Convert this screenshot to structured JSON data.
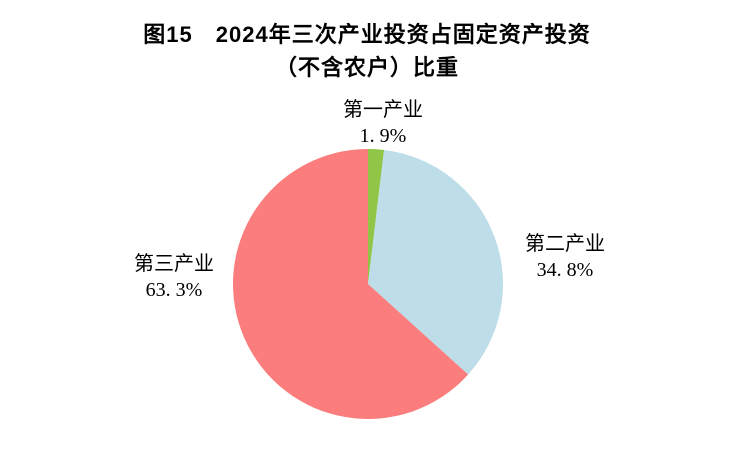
{
  "title": {
    "line1": "图15　2024年三次产业投资占固定资产投资",
    "line2": "（不含农户）比重"
  },
  "chart_data": {
    "type": "pie",
    "title": "图15 2024年三次产业投资占固定资产投资（不含农户）比重",
    "direction": "clockwise",
    "start_angle_deg": 0,
    "legend_position": "none",
    "labels_position": "outside",
    "background": "#ffffff",
    "slices": [
      {
        "label": "第一产业",
        "value": 1.9,
        "value_display": "1. 9%",
        "color": "#8fc647"
      },
      {
        "label": "第二产业",
        "value": 34.8,
        "value_display": "34. 8%",
        "color": "#bddee8"
      },
      {
        "label": "第三产业",
        "value": 63.3,
        "value_display": "63. 3%",
        "color": "#fb7d7d"
      }
    ]
  }
}
